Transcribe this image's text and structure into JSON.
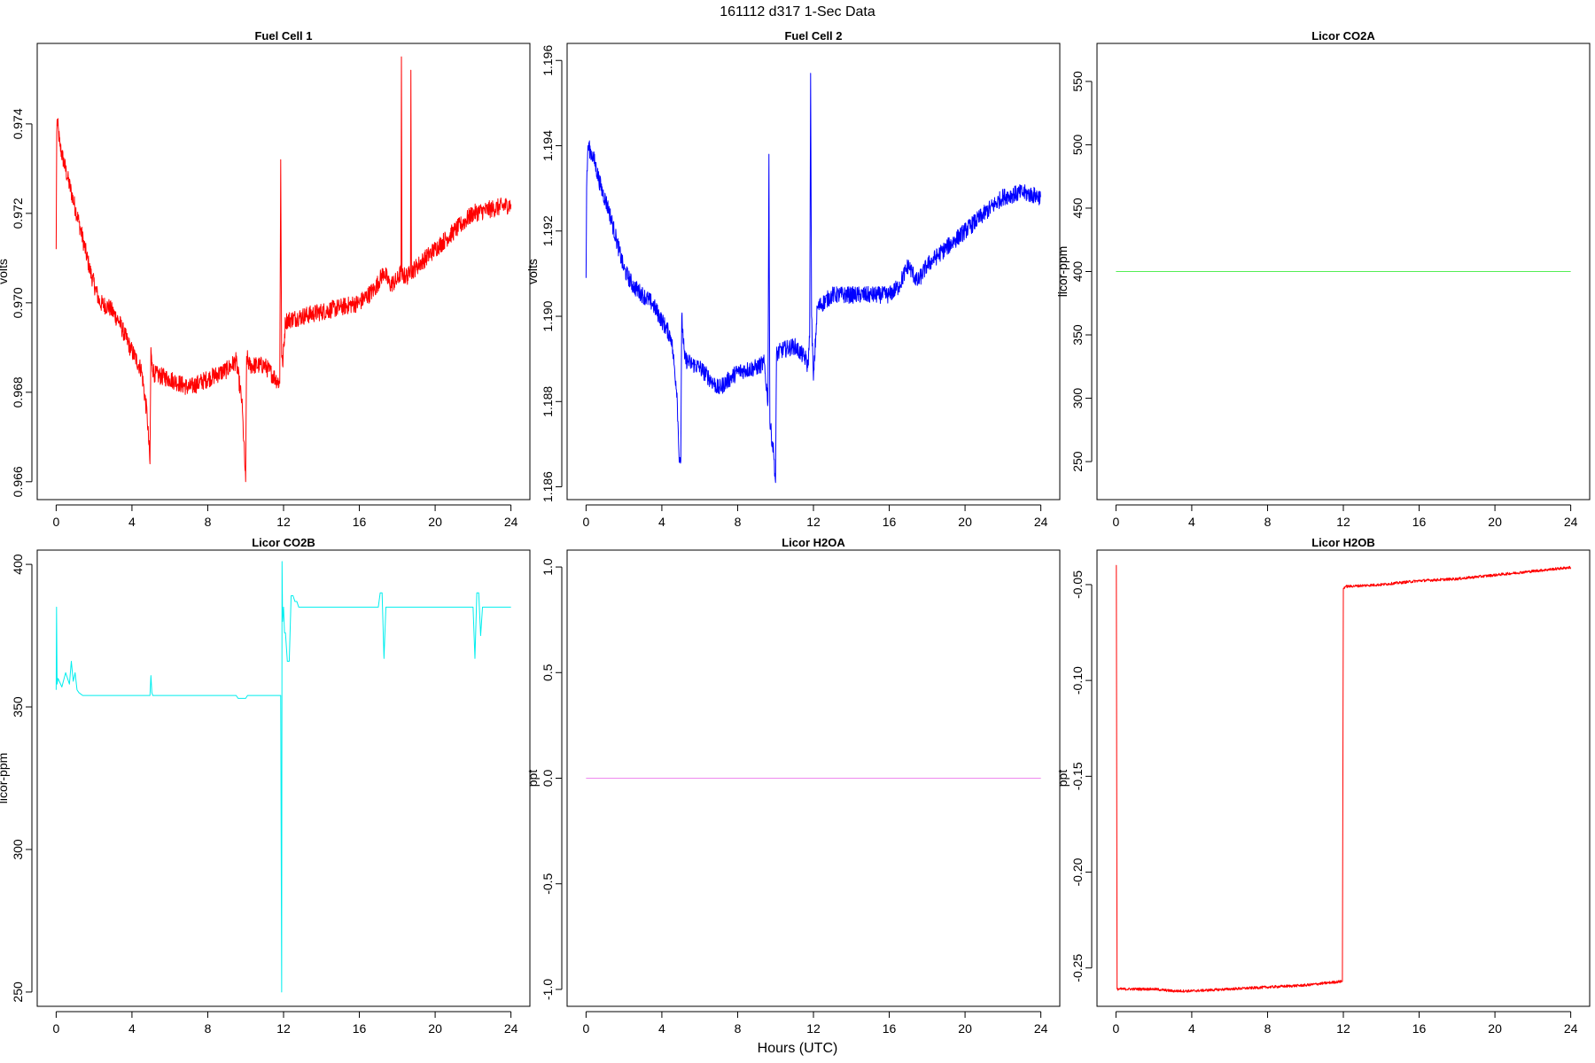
{
  "page": {
    "title": "161112   d317   1-Sec Data",
    "xlabel": "Hours (UTC)"
  },
  "chart_data": [
    {
      "type": "line",
      "title": "Fuel Cell 1",
      "ylabel": "volts",
      "color": "#ff0000",
      "xlim": [
        -1,
        25
      ],
      "ylim": [
        0.9656,
        0.9758
      ],
      "xticks": [
        0,
        4,
        8,
        12,
        16,
        20,
        24
      ],
      "yticks": [
        0.966,
        0.968,
        0.97,
        0.972,
        0.974
      ],
      "ytick_labels": [
        "0.966",
        "0.968",
        "0.970",
        "0.972",
        "0.974"
      ],
      "noise": 0.0002,
      "series": [
        {
          "x": [
            0,
            0.03,
            0.05,
            0.2,
            0.6,
            1.2,
            1.8,
            2.3,
            2.8,
            3.3,
            3.9,
            4.5,
            4.8,
            4.95,
            5.0,
            5.05,
            5.2,
            6.0,
            7.0,
            8.0,
            9.0,
            9.5,
            9.8,
            10.0,
            10.05,
            10.2,
            11.0,
            11.8,
            11.85,
            11.9,
            11.95,
            12.1,
            13.0,
            14.0,
            15.0,
            16.0,
            16.8,
            17.3,
            17.6,
            18.0,
            18.2,
            18.22,
            18.25,
            18.6,
            18.7,
            18.72,
            18.75,
            19.0,
            20.0,
            21.0,
            22.0,
            23.0,
            24.0
          ],
          "y": [
            0.9712,
            0.9738,
            0.9741,
            0.9735,
            0.9728,
            0.9718,
            0.9707,
            0.97,
            0.9699,
            0.9696,
            0.969,
            0.9685,
            0.9675,
            0.9664,
            0.969,
            0.9686,
            0.9684,
            0.9683,
            0.9681,
            0.9683,
            0.9685,
            0.9687,
            0.9678,
            0.966,
            0.9688,
            0.9686,
            0.9686,
            0.9682,
            0.9732,
            0.9688,
            0.9686,
            0.9696,
            0.9697,
            0.9698,
            0.9699,
            0.97,
            0.9703,
            0.9707,
            0.9704,
            0.9705,
            0.9707,
            0.9755,
            0.9706,
            0.9706,
            0.9708,
            0.9752,
            0.9707,
            0.9708,
            0.9712,
            0.9716,
            0.972,
            0.9721,
            0.9722
          ]
        }
      ]
    },
    {
      "type": "line",
      "title": "Fuel Cell 2",
      "ylabel": "volts",
      "color": "#0000ff",
      "xlim": [
        -1,
        25
      ],
      "ylim": [
        1.1857,
        1.1964
      ],
      "xticks": [
        0,
        4,
        8,
        12,
        16,
        20,
        24
      ],
      "yticks": [
        1.186,
        1.188,
        1.19,
        1.192,
        1.194,
        1.196
      ],
      "ytick_labels": [
        "1.186",
        "1.188",
        "1.190",
        "1.192",
        "1.194",
        "1.196"
      ],
      "noise": 0.0002,
      "series": [
        {
          "x": [
            0,
            0.03,
            0.1,
            0.4,
            0.8,
            1.2,
            1.6,
            2.0,
            2.5,
            3.0,
            3.5,
            4.0,
            4.5,
            4.8,
            4.9,
            5.0,
            5.05,
            5.2,
            5.5,
            6.0,
            7.0,
            7.5,
            8.0,
            9.0,
            9.4,
            9.6,
            9.65,
            9.7,
            9.9,
            10.0,
            10.05,
            10.3,
            11.0,
            11.6,
            11.7,
            11.8,
            11.85,
            11.9,
            12.0,
            12.2,
            13.0,
            14.0,
            15.0,
            16.0,
            16.5,
            17.0,
            17.5,
            18.0,
            19.0,
            20.0,
            21.0,
            22.0,
            23.0,
            24.0
          ],
          "y": [
            1.1909,
            1.193,
            1.194,
            1.1937,
            1.193,
            1.1925,
            1.1918,
            1.1911,
            1.1907,
            1.1905,
            1.1903,
            1.1899,
            1.1895,
            1.1882,
            1.1868,
            1.1866,
            1.19,
            1.189,
            1.1889,
            1.1888,
            1.1883,
            1.1885,
            1.1887,
            1.1888,
            1.1889,
            1.188,
            1.1938,
            1.1875,
            1.1868,
            1.1861,
            1.1891,
            1.1892,
            1.1893,
            1.189,
            1.1888,
            1.1895,
            1.1957,
            1.19,
            1.1885,
            1.1902,
            1.1905,
            1.1905,
            1.1905,
            1.1905,
            1.1907,
            1.1912,
            1.1908,
            1.1912,
            1.1916,
            1.192,
            1.1924,
            1.1928,
            1.1929,
            1.1928
          ]
        }
      ]
    },
    {
      "type": "line",
      "title": "Licor CO2A",
      "ylabel": "licor-ppm",
      "color": "#55ee55",
      "xlim": [
        -1,
        25
      ],
      "ylim": [
        220,
        580
      ],
      "xticks": [
        0,
        4,
        8,
        12,
        16,
        20,
        24
      ],
      "yticks": [
        250,
        300,
        350,
        400,
        450,
        500,
        550
      ],
      "ytick_labels": [
        "250",
        "300",
        "350",
        "400",
        "450",
        "500",
        "550"
      ],
      "noise": 0,
      "series": [
        {
          "x": [
            0,
            24
          ],
          "y": [
            400,
            400
          ]
        }
      ]
    },
    {
      "type": "line",
      "title": "Licor CO2B",
      "ylabel": "licor-ppm",
      "color": "#00eeee",
      "xlim": [
        -1,
        25
      ],
      "ylim": [
        245,
        405
      ],
      "xticks": [
        0,
        4,
        8,
        12,
        16,
        20,
        24
      ],
      "yticks": [
        250,
        300,
        350,
        400
      ],
      "ytick_labels": [
        "250",
        "300",
        "350",
        "400"
      ],
      "noise": 0,
      "series": [
        {
          "x": [
            0,
            0.02,
            0.05,
            0.1,
            0.3,
            0.5,
            0.7,
            0.8,
            0.9,
            1.0,
            1.1,
            1.2,
            1.4,
            4.95,
            5.0,
            5.05,
            5.1,
            9.5,
            9.6,
            10.0,
            10.1,
            11.5,
            11.85,
            11.9,
            11.92,
            11.95,
            12.0,
            12.05,
            12.1,
            12.2,
            12.3,
            12.4,
            12.5,
            12.6,
            12.7,
            12.8,
            12.9,
            17.0,
            17.1,
            17.2,
            17.3,
            17.4,
            17.5,
            22.0,
            22.1,
            22.2,
            22.3,
            22.4,
            22.5,
            24.0
          ],
          "y": [
            356,
            385,
            358,
            360,
            357,
            362,
            358,
            366,
            359,
            362,
            356,
            355,
            354,
            354,
            361,
            355,
            354,
            354,
            353,
            353,
            354,
            354,
            354,
            250,
            401,
            380,
            385,
            376,
            376,
            366,
            366,
            389,
            389,
            387,
            387,
            385,
            385,
            385,
            390,
            390,
            367,
            385,
            385,
            385,
            367,
            390,
            390,
            375,
            385,
            385
          ]
        }
      ]
    },
    {
      "type": "line",
      "title": "Licor H2OA",
      "ylabel": "ppt",
      "color": "#ee88ee",
      "xlim": [
        -1,
        25
      ],
      "ylim": [
        -1.08,
        1.08
      ],
      "xticks": [
        0,
        4,
        8,
        12,
        16,
        20,
        24
      ],
      "yticks": [
        -1.0,
        -0.5,
        0.0,
        0.5,
        1.0
      ],
      "ytick_labels": [
        "-1.0",
        "-0.5",
        "0.0",
        "0.5",
        "1.0"
      ],
      "noise": 0,
      "series": [
        {
          "x": [
            0,
            24
          ],
          "y": [
            0,
            0
          ]
        }
      ]
    },
    {
      "type": "line",
      "title": "Licor H2OB",
      "ylabel": "ppt",
      "color": "#ff0000",
      "xlim": [
        -1,
        25
      ],
      "ylim": [
        -0.27,
        -0.032
      ],
      "xticks": [
        0,
        4,
        8,
        12,
        16,
        20,
        24
      ],
      "yticks": [
        -0.25,
        -0.2,
        -0.15,
        -0.1,
        -0.05
      ],
      "ytick_labels": [
        "-0.25",
        "-0.20",
        "-0.15",
        "-0.10",
        "-0.05"
      ],
      "noise": 0.0007,
      "series": [
        {
          "x": [
            0,
            0.02,
            0.06,
            1.0,
            2.0,
            3.0,
            4.0,
            6.0,
            8.0,
            10.0,
            11.9,
            11.95,
            12.0,
            12.1,
            14.0,
            16.0,
            18.0,
            20.0,
            22.0,
            24.0
          ],
          "y": [
            -0.04,
            -0.04,
            -0.261,
            -0.261,
            -0.261,
            -0.262,
            -0.262,
            -0.261,
            -0.26,
            -0.259,
            -0.257,
            -0.257,
            -0.052,
            -0.051,
            -0.05,
            -0.048,
            -0.047,
            -0.045,
            -0.043,
            -0.041
          ]
        }
      ]
    }
  ]
}
